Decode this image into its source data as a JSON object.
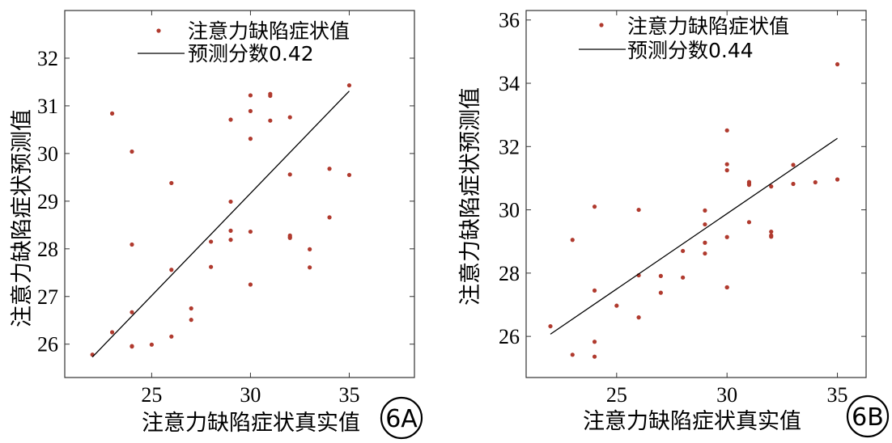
{
  "chart_data": [
    {
      "type": "scatter",
      "panel_label": "6A",
      "xlabel": "注意力缺陷症状真实值",
      "ylabel": "注意力缺陷症状预测值",
      "xlim": [
        20.6,
        38.3
      ],
      "ylim": [
        25.3,
        33.0
      ],
      "xticks": [
        25,
        30,
        35
      ],
      "yticks": [
        26,
        27,
        28,
        29,
        30,
        31,
        32
      ],
      "grid": false,
      "legend_position": "top",
      "series": [
        {
          "name": "注意力缺陷症状值",
          "kind": "points",
          "color": "#b03a2e",
          "x": [
            22,
            23,
            23,
            24,
            24,
            24,
            24,
            24,
            25,
            26,
            26,
            26,
            27,
            27,
            28,
            28,
            29,
            29,
            29,
            29,
            30,
            30,
            30,
            30,
            30,
            31,
            31,
            31,
            32,
            32,
            32,
            32,
            32,
            33,
            33,
            34,
            34,
            35,
            35
          ],
          "y": [
            25.78,
            30.84,
            26.25,
            30.04,
            28.09,
            26.67,
            25.96,
            25.95,
            25.99,
            29.38,
            27.56,
            26.16,
            26.75,
            26.51,
            28.15,
            27.62,
            30.71,
            28.99,
            28.38,
            28.19,
            31.22,
            30.89,
            30.31,
            28.36,
            27.25,
            31.25,
            31.21,
            30.69,
            30.76,
            29.56,
            28.28,
            28.25,
            28.23,
            27.99,
            27.61,
            29.68,
            28.66,
            31.43,
            29.55
          ]
        },
        {
          "name": "预测分数0.42",
          "kind": "line",
          "color": "#000000",
          "x": [
            22,
            35
          ],
          "y": [
            25.73,
            31.31
          ]
        }
      ]
    },
    {
      "type": "scatter",
      "panel_label": "6B",
      "xlabel": "注意力缺陷症状真实值",
      "ylabel": "注意力缺陷症状预测值",
      "xlim": [
        20.9,
        36.3
      ],
      "ylim": [
        24.7,
        36.3
      ],
      "xticks": [
        25,
        30,
        35
      ],
      "yticks": [
        26,
        28,
        30,
        32,
        34,
        36
      ],
      "grid": false,
      "legend_position": "top",
      "series": [
        {
          "name": "注意力缺陷症状值",
          "kind": "points",
          "color": "#b03a2e",
          "x": [
            22,
            23,
            23,
            24,
            24,
            24,
            24,
            25,
            26,
            26,
            26,
            27,
            27,
            28,
            28,
            29,
            29,
            29,
            29,
            30,
            30,
            30,
            30,
            30,
            30,
            31,
            31,
            31,
            31,
            32,
            32,
            32,
            32,
            33,
            33,
            34,
            35,
            35
          ],
          "y": [
            26.32,
            29.05,
            25.42,
            30.1,
            27.45,
            25.83,
            25.36,
            26.97,
            30.0,
            27.93,
            26.6,
            27.91,
            27.38,
            28.7,
            27.86,
            29.98,
            29.54,
            28.96,
            28.62,
            32.51,
            31.44,
            31.25,
            29.14,
            27.55,
            27.55,
            30.88,
            30.84,
            30.79,
            29.61,
            30.74,
            29.31,
            29.19,
            29.15,
            31.42,
            30.82,
            30.87,
            34.6,
            30.96
          ]
        },
        {
          "name": "预测分数0.44",
          "kind": "line",
          "color": "#000000",
          "x": [
            22,
            35
          ],
          "y": [
            26.07,
            32.26
          ]
        }
      ]
    }
  ]
}
